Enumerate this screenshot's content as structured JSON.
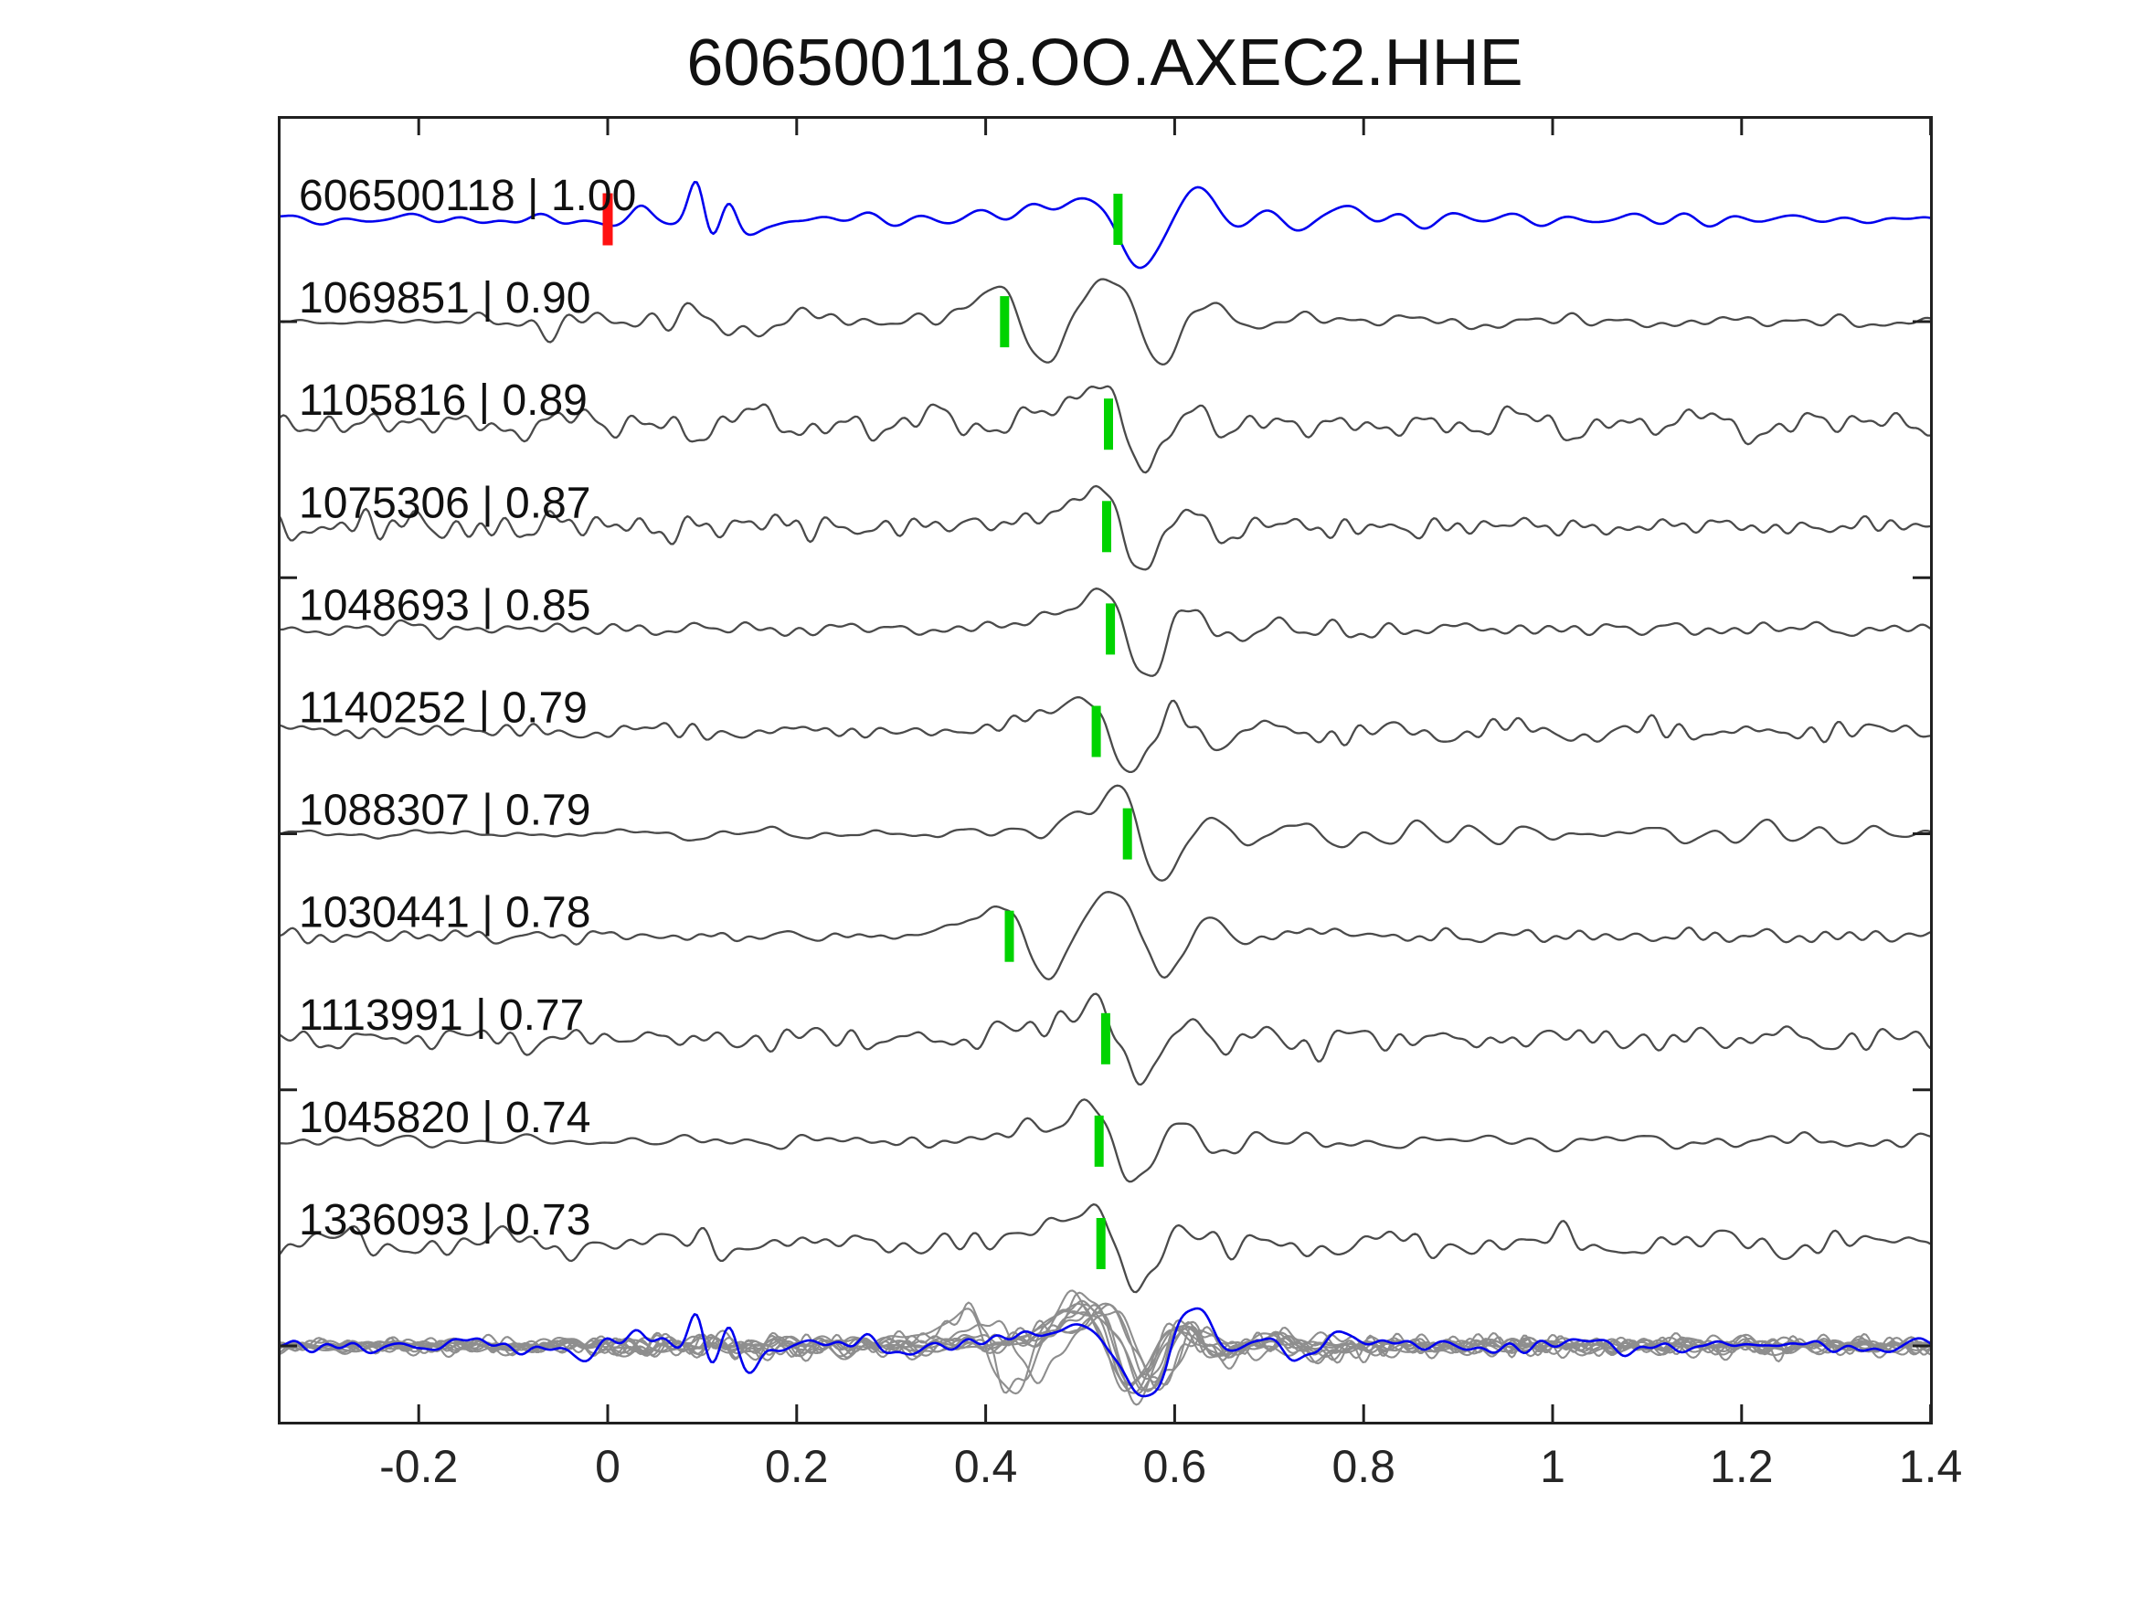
{
  "title": "606500118.OO.AXEC2.HHE",
  "colors": {
    "template_blue": "#0000ee",
    "trace_gray": "#4a4a4a",
    "overlay_gray": "#8e8e8e",
    "pick_green": "#00d300",
    "pick_red": "#ff1111",
    "frame": "#202020",
    "text": "#111111",
    "background": "#ffffff"
  },
  "axes": {
    "x_range": [
      -0.348,
      1.4
    ],
    "x_ticks": [
      -0.2,
      0,
      0.2,
      0.4,
      0.6,
      0.8,
      1,
      1.2,
      1.4
    ],
    "x_tick_labels": [
      "-0.2",
      "0",
      "0.2",
      "0.4",
      "0.6",
      "0.8",
      "1",
      "1.2",
      "1.4"
    ],
    "grid": false,
    "legend": false
  },
  "chart_data": {
    "type": "line",
    "title": "606500118.OO.AXEC2.HHE",
    "xlabel": "",
    "ylabel": "",
    "x_range": [
      -0.348,
      1.4
    ],
    "description": "Template-matching waveform panel: blue = template event 606500118, gray rows = detected events sorted by cross-correlation, green bars = pick times, red bar = template zero time, bottom row = all aligned traces overlaid with template.",
    "wavelets": {
      "main": [
        [
          -0.055,
          14,
          0.035
        ],
        [
          -0.004,
          47,
          0.022
        ],
        [
          0.038,
          -62,
          0.024
        ],
        [
          0.082,
          36,
          0.023
        ],
        [
          0.125,
          -22,
          0.026
        ],
        [
          0.168,
          16,
          0.028
        ],
        [
          0.213,
          -9,
          0.03
        ]
      ],
      "early": [
        [
          -0.045,
          12,
          0.03
        ],
        [
          0.0,
          43,
          0.02
        ],
        [
          0.038,
          -58,
          0.025
        ],
        [
          0.082,
          28,
          0.026
        ],
        [
          0.124,
          47,
          0.024
        ],
        [
          0.164,
          -62,
          0.026
        ],
        [
          0.208,
          37,
          0.026
        ],
        [
          0.252,
          -18,
          0.03
        ],
        [
          0.298,
          11,
          0.032
        ]
      ],
      "template": [
        [
          -0.07,
          12,
          0.045
        ],
        [
          -0.022,
          16,
          0.025
        ],
        [
          0.028,
          -56,
          0.026
        ],
        [
          0.068,
          28,
          0.018
        ],
        [
          0.093,
          27,
          0.02
        ],
        [
          0.122,
          -24,
          0.022
        ],
        [
          0.152,
          25,
          0.02
        ],
        [
          0.188,
          -17,
          0.025
        ],
        [
          0.228,
          11,
          0.03
        ]
      ],
      "template_spikes": [
        [
          -0.02,
          -10,
          0.012
        ],
        [
          0.035,
          14,
          0.01
        ],
        [
          0.094,
          40,
          0.008
        ],
        [
          0.109,
          -26,
          0.009
        ],
        [
          0.128,
          27,
          0.008
        ],
        [
          0.148,
          -22,
          0.012
        ]
      ]
    },
    "traces": [
      {
        "event_id": "606500118",
        "cc": "1.00",
        "cc_value": 1.0,
        "row_label": "606500118 | 1.00",
        "role": "template",
        "green_pick_t": 0.54,
        "red_pick_t": 0.0,
        "synth": {
          "kind": "template",
          "seed": 11,
          "noise_amp": 8,
          "env": [
            [
              -0.35,
              0.9
            ],
            [
              0.05,
              1.1
            ],
            [
              0.2,
              0.9
            ],
            [
              1.4,
              0.85
            ]
          ]
        }
      },
      {
        "event_id": "1069851",
        "cc": "0.90",
        "cc_value": 0.9,
        "row_label": "1069851 | 0.90",
        "role": "detection",
        "green_pick_t": 0.42,
        "synth": {
          "kind": "early",
          "seed": 22,
          "noise_amp": 15,
          "env": [
            [
              -0.35,
              0.12
            ],
            [
              -0.18,
              0.2
            ],
            [
              -0.08,
              1.2
            ],
            [
              0.12,
              1.1
            ],
            [
              0.3,
              0.55
            ],
            [
              0.75,
              0.5
            ],
            [
              1.4,
              0.5
            ]
          ]
        }
      },
      {
        "event_id": "1105816",
        "cc": "0.89",
        "cc_value": 0.89,
        "row_label": "1105816 | 0.89",
        "role": "detection",
        "green_pick_t": 0.53,
        "synth": {
          "kind": "main",
          "seed": 33,
          "noise_amp": 15,
          "env": [
            [
              -0.35,
              1.0
            ],
            [
              0.25,
              1.05
            ],
            [
              0.62,
              0.9
            ],
            [
              1.4,
              0.95
            ]
          ]
        }
      },
      {
        "event_id": "1075306",
        "cc": "0.87",
        "cc_value": 0.87,
        "row_label": "1075306 | 0.87",
        "role": "detection",
        "green_pick_t": 0.528,
        "synth": {
          "kind": "main",
          "seed": 44,
          "noise_amp": 14,
          "env": [
            [
              -0.35,
              1.1
            ],
            [
              0.15,
              1.0
            ],
            [
              0.35,
              0.55
            ],
            [
              0.6,
              0.7
            ],
            [
              1.4,
              0.6
            ]
          ]
        }
      },
      {
        "event_id": "1048693",
        "cc": "0.85",
        "cc_value": 0.85,
        "row_label": "1048693 | 0.85",
        "role": "detection",
        "green_pick_t": 0.532,
        "synth": {
          "kind": "main",
          "seed": 55,
          "noise_amp": 9,
          "env": [
            [
              -0.35,
              0.85
            ],
            [
              0.1,
              0.95
            ],
            [
              0.4,
              0.7
            ],
            [
              0.62,
              1.3
            ],
            [
              0.85,
              1.0
            ],
            [
              1.4,
              0.8
            ]
          ]
        }
      },
      {
        "event_id": "1140252",
        "cc": "0.79",
        "cc_value": 0.79,
        "row_label": "1140252 | 0.79",
        "role": "detection",
        "green_pick_t": 0.517,
        "synth": {
          "kind": "main",
          "seed": 66,
          "noise_amp": 9,
          "env": [
            [
              -0.35,
              0.8
            ],
            [
              0.05,
              1.1
            ],
            [
              0.3,
              0.7
            ],
            [
              0.62,
              1.2
            ],
            [
              0.9,
              1.2
            ],
            [
              1.25,
              1.4
            ],
            [
              1.4,
              1.0
            ]
          ]
        }
      },
      {
        "event_id": "1088307",
        "cc": "0.79",
        "cc_value": 0.79,
        "row_label": "1088307 | 0.79",
        "role": "detection",
        "green_pick_t": 0.55,
        "synth": {
          "kind": "main",
          "seed": 77,
          "noise_amp": 9,
          "env": [
            [
              -0.35,
              0.9
            ],
            [
              0.2,
              0.9
            ],
            [
              0.65,
              1.2
            ],
            [
              1.4,
              0.9
            ]
          ]
        }
      },
      {
        "event_id": "1030441",
        "cc": "0.78",
        "cc_value": 0.78,
        "row_label": "1030441 | 0.78",
        "role": "detection",
        "green_pick_t": 0.425,
        "synth": {
          "kind": "early",
          "seed": 88,
          "noise_amp": 8,
          "env": [
            [
              -0.35,
              0.9
            ],
            [
              0.1,
              0.8
            ],
            [
              0.3,
              0.6
            ],
            [
              0.8,
              0.8
            ],
            [
              1.4,
              0.9
            ]
          ]
        }
      },
      {
        "event_id": "1113991",
        "cc": "0.77",
        "cc_value": 0.77,
        "row_label": "1113991 | 0.77",
        "role": "detection",
        "green_pick_t": 0.527,
        "synth": {
          "kind": "main",
          "seed": 99,
          "noise_amp": 13,
          "env": [
            [
              -0.35,
              1.0
            ],
            [
              0.3,
              0.95
            ],
            [
              0.65,
              1.1
            ],
            [
              1.4,
              1.0
            ]
          ]
        }
      },
      {
        "event_id": "1045820",
        "cc": "0.74",
        "cc_value": 0.74,
        "row_label": "1045820 | 0.74",
        "role": "detection",
        "green_pick_t": 0.52,
        "synth": {
          "kind": "main",
          "seed": 1010,
          "noise_amp": 8,
          "env": [
            [
              -0.35,
              0.95
            ],
            [
              0.25,
              0.85
            ],
            [
              0.62,
              1.3
            ],
            [
              0.95,
              1.1
            ],
            [
              1.4,
              0.9
            ]
          ]
        }
      },
      {
        "event_id": "1336093",
        "cc": "0.73",
        "cc_value": 0.73,
        "row_label": "1336093 | 0.73",
        "role": "detection",
        "green_pick_t": 0.522,
        "synth": {
          "kind": "main",
          "seed": 1111,
          "noise_amp": 14,
          "env": [
            [
              -0.35,
              1.1
            ],
            [
              0.3,
              1.0
            ],
            [
              0.65,
              1.1
            ],
            [
              1.4,
              1.0
            ]
          ]
        }
      }
    ],
    "overlay_row": {
      "has_template_trace": true,
      "template_synth": {
        "kind": "template",
        "seed": 7,
        "noise_amp": 9,
        "pick": 0.54,
        "env": [
          [
            -0.35,
            0.9
          ],
          [
            0.05,
            1.1
          ],
          [
            0.3,
            1.0
          ],
          [
            1.4,
            0.9
          ]
        ]
      },
      "gray_traces": [
        {
          "seed": 101,
          "t0": 0.515,
          "amp": 1.0,
          "early": false,
          "noise_amp": 9
        },
        {
          "seed": 102,
          "t0": 0.525,
          "amp": 1.1,
          "early": false,
          "noise_amp": 10
        },
        {
          "seed": 103,
          "t0": 0.53,
          "amp": 0.9,
          "early": false,
          "noise_amp": 8
        },
        {
          "seed": 104,
          "t0": 0.51,
          "amp": 1.05,
          "early": true,
          "noise_amp": 10
        },
        {
          "seed": 105,
          "t0": 0.54,
          "amp": 0.95,
          "early": false,
          "noise_amp": 9
        },
        {
          "seed": 106,
          "t0": 0.52,
          "amp": 1.15,
          "early": false,
          "noise_amp": 11
        },
        {
          "seed": 107,
          "t0": 0.535,
          "amp": 0.85,
          "early": true,
          "noise_amp": 9
        },
        {
          "seed": 108,
          "t0": 0.515,
          "amp": 1.0,
          "early": false,
          "noise_amp": 10
        },
        {
          "seed": 109,
          "t0": 0.545,
          "amp": 0.9,
          "early": false,
          "noise_amp": 8
        },
        {
          "seed": 110,
          "t0": 0.505,
          "amp": 1.05,
          "early": true,
          "noise_amp": 10
        },
        {
          "seed": 111,
          "t0": 0.528,
          "amp": 0.95,
          "early": false,
          "noise_amp": 9
        }
      ]
    }
  }
}
